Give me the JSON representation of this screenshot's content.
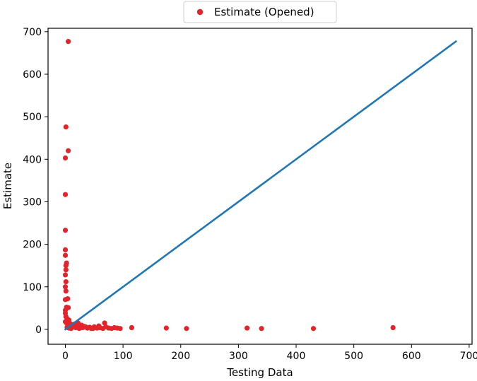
{
  "chart_data": {
    "type": "scatter",
    "title": "",
    "xlabel": "Testing Data",
    "ylabel": "Estimate",
    "xlim": [
      -30,
      705
    ],
    "ylim": [
      -35,
      708
    ],
    "xticks": [
      0,
      100,
      200,
      300,
      400,
      500,
      600,
      700
    ],
    "yticks": [
      0,
      100,
      200,
      300,
      400,
      500,
      600,
      700
    ],
    "grid": false,
    "legend": {
      "position": "top-center-outside"
    },
    "colors": {
      "scatter": "#e3242b",
      "line": "#1f77b4"
    },
    "series": [
      {
        "name": "Estimate (Opened)",
        "type": "scatter",
        "points": [
          [
            5,
            677
          ],
          [
            1,
            476
          ],
          [
            5,
            420
          ],
          [
            0,
            403
          ],
          [
            0,
            317
          ],
          [
            0,
            233
          ],
          [
            0,
            187
          ],
          [
            0,
            174
          ],
          [
            2,
            156
          ],
          [
            1,
            150
          ],
          [
            1,
            140
          ],
          [
            0,
            128
          ],
          [
            1,
            112
          ],
          [
            0,
            100
          ],
          [
            1,
            90
          ],
          [
            4,
            72
          ],
          [
            0,
            70
          ],
          [
            2,
            52
          ],
          [
            5,
            51
          ],
          [
            0,
            45
          ],
          [
            0,
            38
          ],
          [
            1,
            30
          ],
          [
            3,
            25
          ],
          [
            6,
            22
          ],
          [
            0,
            18
          ],
          [
            2,
            15
          ],
          [
            8,
            14
          ],
          [
            12,
            10
          ],
          [
            15,
            12
          ],
          [
            20,
            8
          ],
          [
            22,
            15
          ],
          [
            25,
            5
          ],
          [
            28,
            10
          ],
          [
            30,
            4
          ],
          [
            35,
            6
          ],
          [
            38,
            3
          ],
          [
            42,
            5
          ],
          [
            45,
            2
          ],
          [
            50,
            6
          ],
          [
            55,
            3
          ],
          [
            58,
            8
          ],
          [
            60,
            4
          ],
          [
            65,
            2
          ],
          [
            68,
            15
          ],
          [
            70,
            6
          ],
          [
            75,
            3
          ],
          [
            80,
            2
          ],
          [
            85,
            4
          ],
          [
            90,
            3
          ],
          [
            95,
            2
          ],
          [
            115,
            4
          ],
          [
            175,
            3
          ],
          [
            210,
            2
          ],
          [
            315,
            3
          ],
          [
            340,
            2
          ],
          [
            430,
            2
          ],
          [
            568,
            4
          ],
          [
            3,
            5
          ],
          [
            6,
            3
          ],
          [
            10,
            2
          ],
          [
            18,
            4
          ],
          [
            24,
            2
          ],
          [
            32,
            7
          ],
          [
            48,
            2
          ]
        ]
      },
      {
        "name": "",
        "type": "line",
        "points": [
          [
            0,
            0
          ],
          [
            677,
            677
          ]
        ]
      }
    ]
  }
}
